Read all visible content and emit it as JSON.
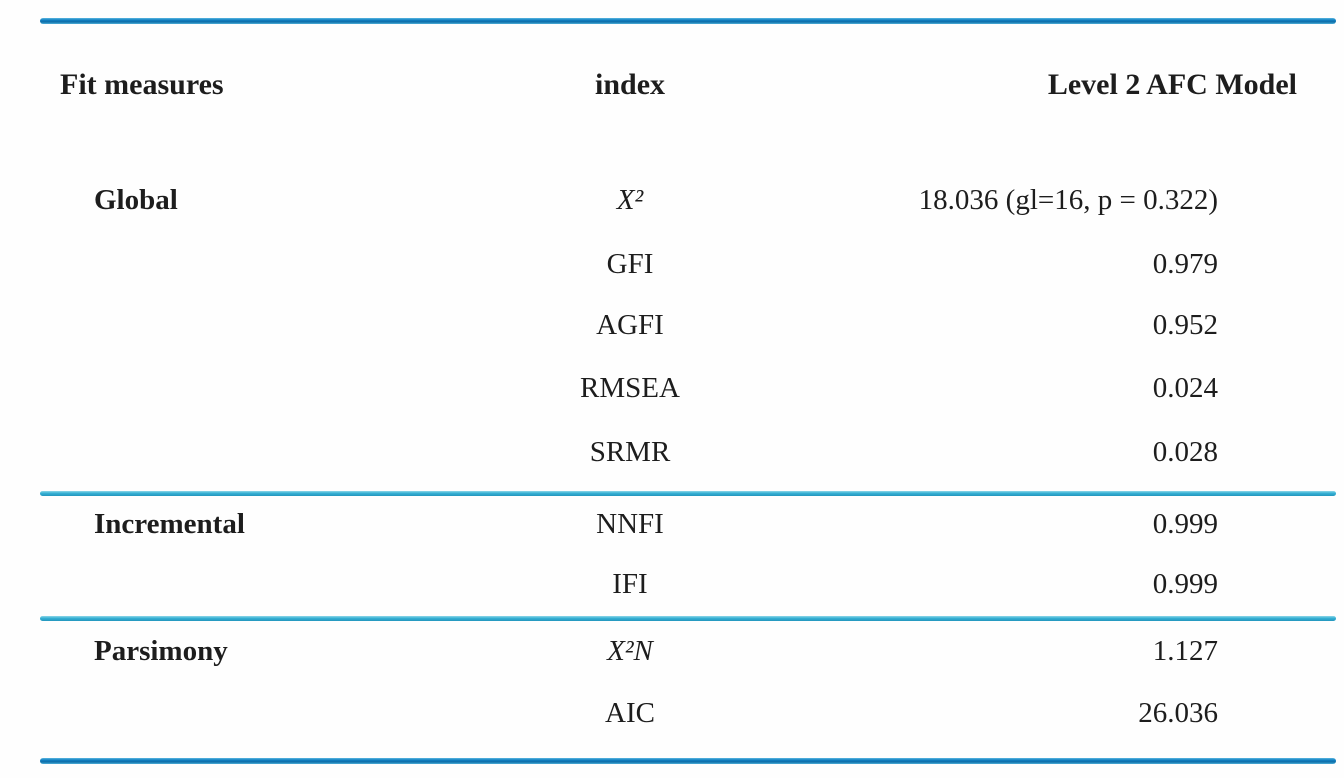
{
  "accent_colors": {
    "rule_strong_blue": "#117fc1",
    "rule_light_cyan": "#35b0d4",
    "text": "#1d1d1d"
  },
  "table": {
    "header": {
      "measures": "Fit measures",
      "index": "index",
      "model": "Level 2 AFC Model"
    },
    "rows": [
      {
        "group": "Global",
        "index": "X²",
        "value": "18.036 (gl=16, p = 0.322)"
      },
      {
        "group": "",
        "index": "GFI",
        "value": "0.979"
      },
      {
        "group": "",
        "index": "AGFI",
        "value": "0.952"
      },
      {
        "group": "",
        "index": "RMSEA",
        "value": "0.024"
      },
      {
        "group": "",
        "index": "SRMR",
        "value": "0.028"
      },
      {
        "group": "Incremental",
        "index": "NNFI",
        "value": "0.999"
      },
      {
        "group": "",
        "index": "IFI",
        "value": "0.999"
      },
      {
        "group": "Parsimony",
        "index": "X²N",
        "value": "1.127"
      },
      {
        "group": "",
        "index": "AIC",
        "value": "26.036"
      }
    ]
  },
  "chart_data": {
    "type": "table",
    "title": "Level 2 AFC Model fit measures",
    "columns": [
      "Fit measures",
      "index",
      "Level 2 AFC Model"
    ],
    "rows": [
      [
        "Global",
        "X²",
        "18.036 (gl=16, p = 0.322)"
      ],
      [
        "",
        "GFI",
        "0.979"
      ],
      [
        "",
        "AGFI",
        "0.952"
      ],
      [
        "",
        "RMSEA",
        "0.024"
      ],
      [
        "",
        "SRMR",
        "0.028"
      ],
      [
        "Incremental",
        "NNFI",
        "0.999"
      ],
      [
        "",
        "IFI",
        "0.999"
      ],
      [
        "Parsimony",
        "X²N",
        "1.127"
      ],
      [
        "",
        "AIC",
        "26.036"
      ]
    ]
  }
}
